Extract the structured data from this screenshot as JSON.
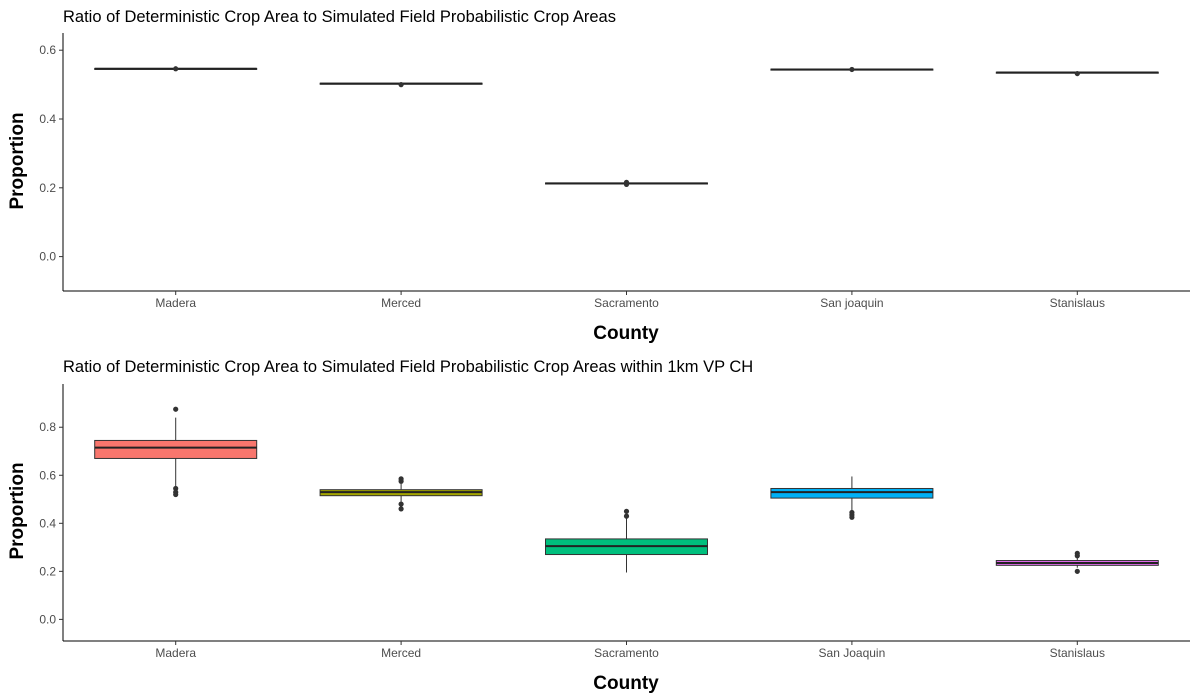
{
  "chart_data": [
    {
      "type": "box",
      "title": "Ratio of Deterministic Crop Area to Simulated Field Probabilistic Crop Areas",
      "xlabel": "County",
      "ylabel": "Proportion",
      "ylim": [
        -0.1,
        0.65
      ],
      "yticks": [
        "0.0",
        "0.2",
        "0.4",
        "0.6"
      ],
      "grid": false,
      "legend": "none",
      "categories": [
        "Madera",
        "Merced",
        "Sacramento",
        "San joaquin",
        "Stanislaus"
      ],
      "boxes": [
        {
          "category": "Madera",
          "q1": 0.545,
          "median": 0.546,
          "q3": 0.547,
          "whisker_low": 0.545,
          "whisker_high": 0.547,
          "outliers": [
            0.546
          ],
          "fill": "#ffffff"
        },
        {
          "category": "Merced",
          "q1": 0.502,
          "median": 0.503,
          "q3": 0.504,
          "whisker_low": 0.502,
          "whisker_high": 0.504,
          "outliers": [
            0.5
          ],
          "fill": "#ffffff"
        },
        {
          "category": "Sacramento",
          "q1": 0.212,
          "median": 0.213,
          "q3": 0.214,
          "whisker_low": 0.212,
          "whisker_high": 0.214,
          "outliers": [
            0.21,
            0.216
          ],
          "fill": "#ffffff"
        },
        {
          "category": "San joaquin",
          "q1": 0.543,
          "median": 0.544,
          "q3": 0.545,
          "whisker_low": 0.543,
          "whisker_high": 0.545,
          "outliers": [
            0.544
          ],
          "fill": "#ffffff"
        },
        {
          "category": "Stanislaus",
          "q1": 0.534,
          "median": 0.535,
          "q3": 0.536,
          "whisker_low": 0.534,
          "whisker_high": 0.536,
          "outliers": [
            0.532
          ],
          "fill": "#ffffff"
        }
      ]
    },
    {
      "type": "box",
      "title": "Ratio of Deterministic Crop Area to Simulated Field Probabilistic Crop Areas within 1km VP CH",
      "xlabel": "County",
      "ylabel": "Proportion",
      "ylim": [
        -0.09,
        0.98
      ],
      "yticks": [
        "0.0",
        "0.2",
        "0.4",
        "0.6",
        "0.8"
      ],
      "grid": false,
      "legend": "none",
      "categories": [
        "Madera",
        "Merced",
        "Sacramento",
        "San Joaquin",
        "Stanislaus"
      ],
      "boxes": [
        {
          "category": "Madera",
          "q1": 0.67,
          "median": 0.715,
          "q3": 0.745,
          "whisker_low": 0.555,
          "whisker_high": 0.84,
          "outliers": [
            0.875,
            0.545,
            0.53,
            0.52
          ],
          "fill": "#F8766D"
        },
        {
          "category": "Merced",
          "q1": 0.515,
          "median": 0.53,
          "q3": 0.54,
          "whisker_low": 0.49,
          "whisker_high": 0.565,
          "outliers": [
            0.585,
            0.575,
            0.48,
            0.46
          ],
          "fill": "#A3A500"
        },
        {
          "category": "Sacramento",
          "q1": 0.27,
          "median": 0.305,
          "q3": 0.335,
          "whisker_low": 0.195,
          "whisker_high": 0.42,
          "outliers": [
            0.45,
            0.43
          ],
          "fill": "#00BF7D"
        },
        {
          "category": "San Joaquin",
          "q1": 0.505,
          "median": 0.53,
          "q3": 0.545,
          "whisker_low": 0.45,
          "whisker_high": 0.595,
          "outliers": [
            0.445,
            0.435,
            0.425
          ],
          "fill": "#00B0F6"
        },
        {
          "category": "Stanislaus",
          "q1": 0.225,
          "median": 0.235,
          "q3": 0.245,
          "whisker_low": 0.215,
          "whisker_high": 0.26,
          "outliers": [
            0.275,
            0.265,
            0.2
          ],
          "fill": "#E76BF3"
        }
      ]
    }
  ]
}
